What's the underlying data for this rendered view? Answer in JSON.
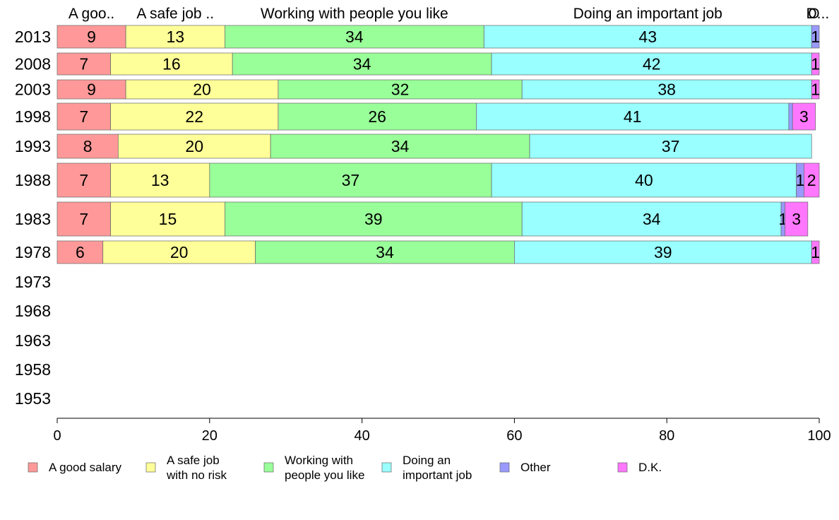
{
  "chart_data": {
    "type": "bar",
    "orientation": "horizontal",
    "stacked": true,
    "categories": [
      "2013",
      "2008",
      "2003",
      "1998",
      "1993",
      "1988",
      "1983",
      "1978",
      "1973",
      "1968",
      "1963",
      "1958",
      "1953"
    ],
    "series": [
      {
        "name": "A good salary",
        "top_label": "A goo..",
        "legend_lines": [
          "A good salary"
        ],
        "color": "#ff9999",
        "values": [
          9,
          7,
          9,
          7,
          8,
          7,
          7,
          6,
          null,
          null,
          null,
          null,
          null
        ]
      },
      {
        "name": "A safe job with no risk",
        "top_label": "A safe job ..",
        "legend_lines": [
          "A safe job",
          "with no risk"
        ],
        "color": "#ffff99",
        "values": [
          13,
          16,
          20,
          22,
          20,
          13,
          15,
          20,
          null,
          null,
          null,
          null,
          null
        ]
      },
      {
        "name": "Working with people you like",
        "top_label": "Working with people you like",
        "legend_lines": [
          "Working with",
          "people you like"
        ],
        "color": "#99ff99",
        "values": [
          34,
          34,
          32,
          26,
          34,
          37,
          39,
          34,
          null,
          null,
          null,
          null,
          null
        ]
      },
      {
        "name": "Doing an important job",
        "top_label": "Doing an important job",
        "legend_lines": [
          "Doing an",
          "important job"
        ],
        "color": "#99ffff",
        "values": [
          43,
          42,
          38,
          41,
          37,
          40,
          34,
          39,
          null,
          null,
          null,
          null,
          null
        ]
      },
      {
        "name": "Other",
        "top_label": "O",
        "legend_lines": [
          "Other"
        ],
        "color": "#9999ff",
        "values": [
          1,
          0,
          0,
          0.5,
          0,
          1,
          0.5,
          0,
          null,
          null,
          null,
          null,
          null
        ]
      },
      {
        "name": "D.K.",
        "top_label": "D...",
        "legend_lines": [
          "D.K."
        ],
        "color": "#ff77ff",
        "values": [
          0,
          1,
          1,
          3,
          0,
          2,
          3,
          1,
          null,
          null,
          null,
          null,
          null
        ]
      }
    ],
    "bar_labels": [
      [
        "9",
        "13",
        "34",
        "43",
        "1",
        ""
      ],
      [
        "7",
        "16",
        "34",
        "42",
        "",
        "1"
      ],
      [
        "9",
        "20",
        "32",
        "38",
        "",
        "1"
      ],
      [
        "7",
        "22",
        "26",
        "41",
        "",
        "3"
      ],
      [
        "8",
        "20",
        "34",
        "37",
        "",
        ""
      ],
      [
        "7",
        "13",
        "37",
        "40",
        "1",
        "2"
      ],
      [
        "7",
        "15",
        "39",
        "34",
        "1",
        "3"
      ],
      [
        "6",
        "20",
        "34",
        "39",
        "",
        "1"
      ]
    ],
    "xlim": [
      0,
      100
    ],
    "xticks": [
      0,
      20,
      40,
      60,
      80,
      100
    ],
    "legend_position": "bottom",
    "grid": false
  }
}
